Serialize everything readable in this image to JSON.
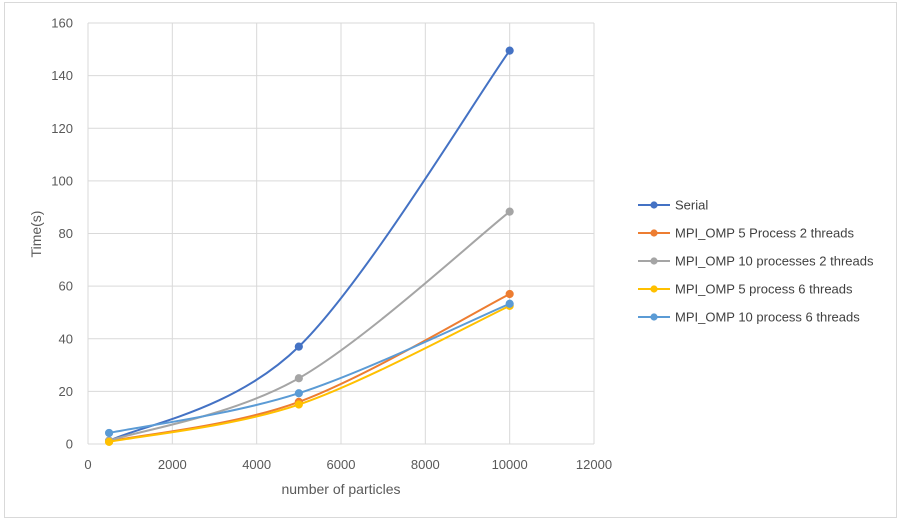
{
  "chart_data": {
    "type": "scatter",
    "title": "",
    "xlabel": "number of particles",
    "ylabel": "Time(s)",
    "xlim": [
      0,
      12000
    ],
    "ylim": [
      0,
      160
    ],
    "xticks": [
      0,
      2000,
      4000,
      6000,
      8000,
      10000,
      12000
    ],
    "yticks": [
      0,
      20,
      40,
      60,
      80,
      100,
      120,
      140,
      160
    ],
    "xtick_labels": [
      "0",
      "2000",
      "4000",
      "6000",
      "8000",
      "10000",
      "12000"
    ],
    "ytick_labels": [
      "0",
      "20",
      "40",
      "60",
      "80",
      "100",
      "120",
      "140",
      "160"
    ],
    "grid": true,
    "smooth_lines": true,
    "legend_position": "right",
    "x": [
      500,
      5000,
      10000
    ],
    "series": [
      {
        "name": "Serial",
        "color": "#4472C4",
        "values": [
          1.2,
          37,
          149.5
        ]
      },
      {
        "name": "MPI_OMP 5 Process 2 threads",
        "color": "#ED7D31",
        "values": [
          1.0,
          16,
          57
        ]
      },
      {
        "name": "MPI_OMP 10 processes 2 threads",
        "color": "#A5A5A5",
        "values": [
          1.3,
          25,
          88.3
        ]
      },
      {
        "name": "MPI_OMP 5 process 6 threads",
        "color": "#FFC000",
        "values": [
          0.8,
          15,
          52.5
        ]
      },
      {
        "name": "MPI_OMP 10 process 6 threads",
        "color": "#5B9BD5",
        "values": [
          4.2,
          19.3,
          53.3
        ]
      }
    ]
  }
}
